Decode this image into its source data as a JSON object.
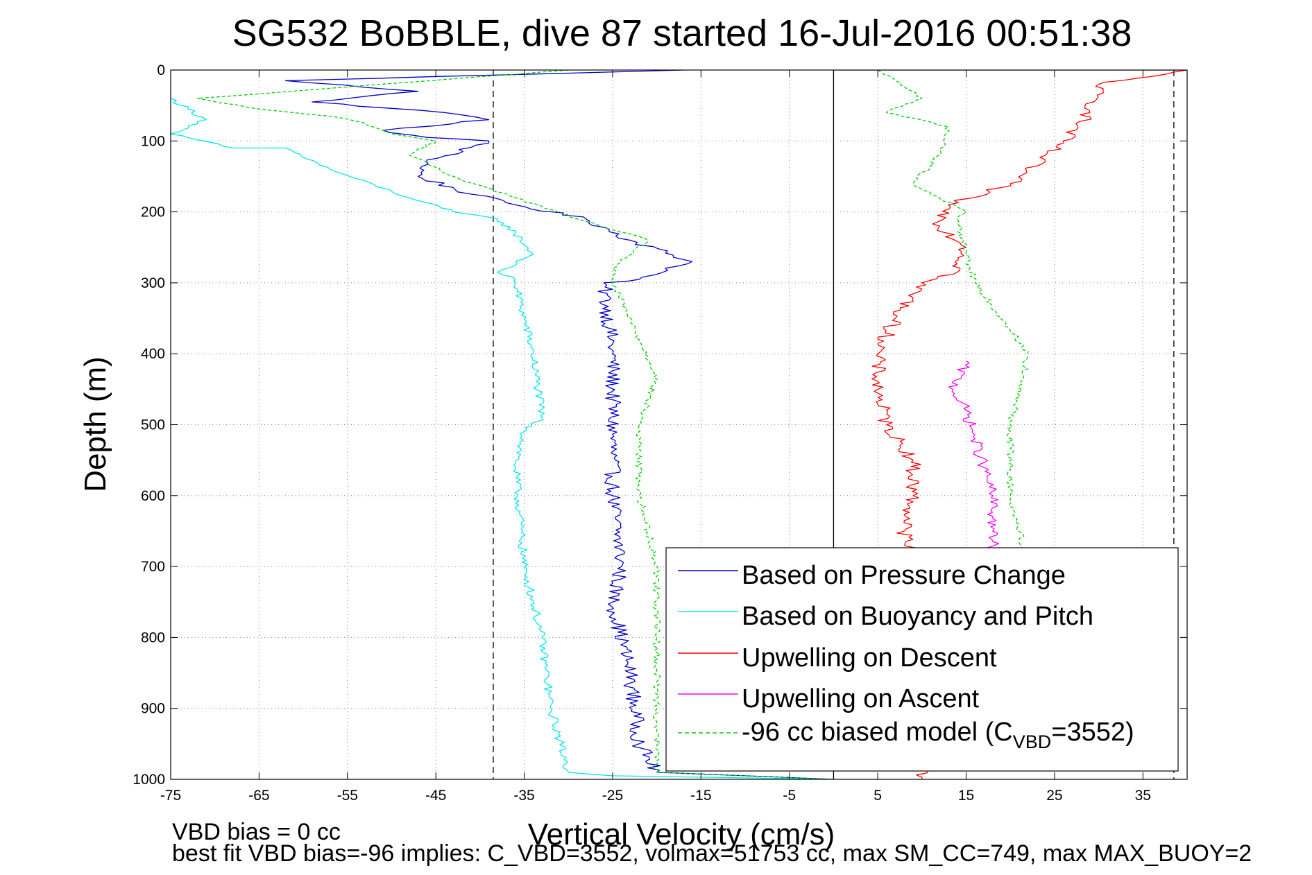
{
  "chart_data": {
    "type": "line",
    "title": "SG532 BoBBLE, dive 87 started 16-Jul-2016 00:51:38",
    "xlabel": "Vertical Velocity (cm/s)",
    "ylabel": "Depth (m)",
    "xlim": [
      -75,
      40
    ],
    "ylim": [
      0,
      1000
    ],
    "y_reversed": true,
    "grid": true,
    "x_ticks": [
      -75,
      -65,
      -55,
      -45,
      -35,
      -25,
      -15,
      -5,
      5,
      15,
      25,
      35
    ],
    "y_ticks": [
      0,
      100,
      200,
      300,
      400,
      500,
      600,
      700,
      800,
      900,
      1000
    ],
    "reference_lines": [
      {
        "x": -38.5,
        "style": "dashed",
        "color": "#000000"
      },
      {
        "x": 0,
        "style": "solid",
        "color": "#000000"
      },
      {
        "x": 38.5,
        "style": "dashed",
        "color": "#000000"
      }
    ],
    "legend": {
      "placement": "bottom-right",
      "entries": [
        {
          "series": 0,
          "label": "Based on Pressure Change"
        },
        {
          "series": 1,
          "label": "Based on Buoyancy and Pitch"
        },
        {
          "series": 2,
          "label": "Upwelling on Descent"
        },
        {
          "series": 3,
          "label": "Upwelling on Ascent"
        },
        {
          "series": 4,
          "label_prefix": "-96 cc biased model (C",
          "label_sub": "VBD",
          "label_suffix": "=3552)"
        }
      ]
    },
    "series": [
      {
        "color": "#0000cc",
        "dash": "solid",
        "points": [
          [
            -17,
            0
          ],
          [
            -62,
            15
          ],
          [
            -47,
            30
          ],
          [
            -59,
            45
          ],
          [
            -44,
            60
          ],
          [
            -39,
            70
          ],
          [
            -51,
            85
          ],
          [
            -46,
            95
          ],
          [
            -39,
            100
          ],
          [
            -46,
            130
          ],
          [
            -47,
            150
          ],
          [
            -41,
            175
          ],
          [
            -36,
            190
          ],
          [
            -28,
            210
          ],
          [
            -23,
            240
          ],
          [
            -16,
            270
          ],
          [
            -22,
            295
          ],
          [
            -26,
            300
          ],
          [
            -25,
            400
          ],
          [
            -25,
            600
          ],
          [
            -24,
            700
          ],
          [
            -25,
            750
          ],
          [
            -23,
            850
          ],
          [
            -22,
            950
          ],
          [
            -20,
            990
          ],
          [
            -10,
            995
          ],
          [
            0,
            1000
          ]
        ]
      },
      {
        "color": "#00e5ee",
        "dash": "solid",
        "points": [
          [
            -75,
            40
          ],
          [
            -71,
            70
          ],
          [
            -75,
            90
          ],
          [
            -68,
            110
          ],
          [
            -62,
            110
          ],
          [
            -57,
            140
          ],
          [
            -48,
            180
          ],
          [
            -43,
            200
          ],
          [
            -38,
            210
          ],
          [
            -36,
            230
          ],
          [
            -34,
            260
          ],
          [
            -38,
            285
          ],
          [
            -36,
            295
          ],
          [
            -36,
            300
          ],
          [
            -34,
            400
          ],
          [
            -33,
            490
          ],
          [
            -35,
            510
          ],
          [
            -36,
            560
          ],
          [
            -35,
            700
          ],
          [
            -33,
            800
          ],
          [
            -32,
            900
          ],
          [
            -30,
            990
          ],
          [
            -25,
            995
          ],
          [
            0,
            1000
          ]
        ]
      },
      {
        "color": "#ff0000",
        "dash": "solid",
        "points": [
          [
            0,
            0
          ],
          [
            40,
            0
          ],
          [
            30,
            20
          ],
          [
            29,
            60
          ],
          [
            26,
            100
          ],
          [
            24,
            120
          ],
          [
            20,
            160
          ],
          [
            13,
            190
          ],
          [
            12,
            220
          ],
          [
            15,
            250
          ],
          [
            14,
            285
          ],
          [
            10,
            300
          ],
          [
            7,
            350
          ],
          [
            5,
            400
          ],
          [
            5,
            450
          ],
          [
            6,
            500
          ],
          [
            9,
            550
          ],
          [
            9,
            600
          ],
          [
            8,
            650
          ],
          [
            9,
            700
          ],
          [
            10,
            800
          ],
          [
            10,
            900
          ],
          [
            10,
            1000
          ]
        ]
      },
      {
        "color": "#ff00ff",
        "dash": "solid",
        "points": [
          [
            15,
            410
          ],
          [
            13.5,
            450
          ],
          [
            15,
            480
          ],
          [
            16,
            520
          ],
          [
            17,
            560
          ],
          [
            18,
            600
          ],
          [
            18,
            650
          ],
          [
            18,
            700
          ],
          [
            18.5,
            760
          ],
          [
            19,
            820
          ]
        ]
      },
      {
        "color": "#00cc00",
        "dash": "dashed",
        "points": [
          [
            -30,
            0
          ],
          [
            -72,
            40
          ],
          [
            -65,
            55
          ],
          [
            -57,
            65
          ],
          [
            -53,
            75
          ],
          [
            -50,
            90
          ],
          [
            -45,
            100
          ],
          [
            -48,
            120
          ],
          [
            -43,
            150
          ],
          [
            -36,
            180
          ],
          [
            -29,
            210
          ],
          [
            -21,
            240
          ],
          [
            -25,
            280
          ],
          [
            -25,
            300
          ],
          [
            -22,
            380
          ],
          [
            -20,
            430
          ],
          [
            -22,
            500
          ],
          [
            -22,
            600
          ],
          [
            -20,
            700
          ],
          [
            -20,
            800
          ],
          [
            -20,
            900
          ],
          [
            -20,
            990
          ],
          [
            0,
            1000
          ],
          [
            5,
            0
          ],
          [
            10,
            40
          ],
          [
            6,
            60
          ],
          [
            13,
            80
          ],
          [
            12,
            120
          ],
          [
            9,
            160
          ],
          [
            15,
            200
          ],
          [
            14,
            210
          ],
          [
            16,
            300
          ],
          [
            22,
            400
          ],
          [
            20,
            500
          ],
          [
            20,
            600
          ],
          [
            22,
            700
          ]
        ]
      }
    ]
  },
  "footer": {
    "line1": "VBD bias = 0 cc",
    "line2": "best fit VBD bias=-96 implies: C_VBD=3552, volmax=51753 cc, max SM_CC=749, max MAX_BUOY=2"
  },
  "colors": {
    "pressure": "#0000cc",
    "buoyancy": "#00e5ee",
    "descent": "#ff0000",
    "ascent": "#ff00ff",
    "model": "#00cc00",
    "grid": "#7f7f7f"
  }
}
